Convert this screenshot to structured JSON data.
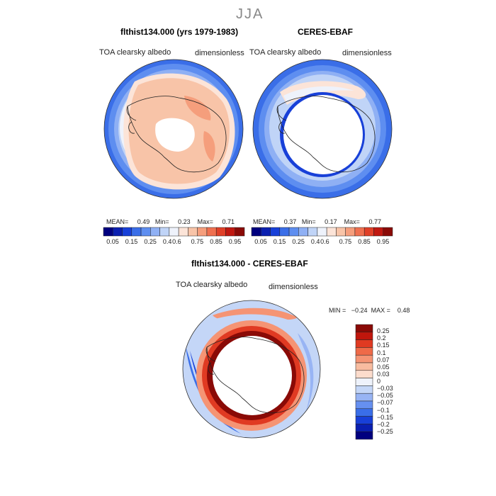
{
  "season": "JJA",
  "colors": {
    "absolute_scale": [
      "#00007f",
      "#0a1fb0",
      "#1840d8",
      "#3a6ee8",
      "#5e8ef0",
      "#8fb0f4",
      "#c0d4f7",
      "#eef2fb",
      "#fce4d8",
      "#f8c4a8",
      "#f59e7c",
      "#ef7050",
      "#e04028",
      "#c01810",
      "#8a0a06"
    ],
    "diff_scale": [
      "#00007f",
      "#0a1fb0",
      "#1840d8",
      "#3a6ee8",
      "#6690f0",
      "#98b4f4",
      "#c4d6f7",
      "#eef2fb",
      "#fcdccc",
      "#f8bca0",
      "#f59474",
      "#ef6a48",
      "#e03a22",
      "#c0160c",
      "#8a0a06"
    ]
  },
  "panels": {
    "model": {
      "title": "flthist134.000 (yrs 1979-1983)",
      "variable": "TOA clearsky albedo",
      "units": "dimensionless",
      "stats": {
        "mean_label": "MEAN=",
        "mean": "0.49",
        "min_label": "Min=",
        "min": "0.23",
        "max_label": "Max=",
        "max": "0.71"
      },
      "colorbar_ticks": [
        "0.05",
        "0.15",
        "0.25",
        "0.4",
        "0.6",
        "0.75",
        "0.85",
        "0.95"
      ]
    },
    "obs": {
      "title": "CERES-EBAF",
      "variable": "TOA clearsky albedo",
      "units": "dimensionless",
      "stats": {
        "mean_label": "MEAN=",
        "mean": "0.37",
        "min_label": "Min=",
        "min": "0.17",
        "max_label": "Max=",
        "max": "0.77"
      },
      "colorbar_ticks": [
        "0.05",
        "0.15",
        "0.25",
        "0.4",
        "0.6",
        "0.75",
        "0.85",
        "0.95"
      ]
    },
    "diff": {
      "title": "flthist134.000 - CERES-EBAF",
      "variable": "TOA clearsky albedo",
      "units": "dimensionless",
      "minmax": {
        "min_label": "MIN =",
        "min": "−0.24",
        "max_label": "MAX =",
        "max": "0.48"
      },
      "colorbar_labels": [
        "0.25",
        "0.2",
        "0.15",
        "0.1",
        "0.07",
        "0.05",
        "0.03",
        "0",
        "−0.03",
        "−0.05",
        "−0.07",
        "−0.1",
        "−0.15",
        "−0.2",
        "−0.25"
      ]
    }
  }
}
